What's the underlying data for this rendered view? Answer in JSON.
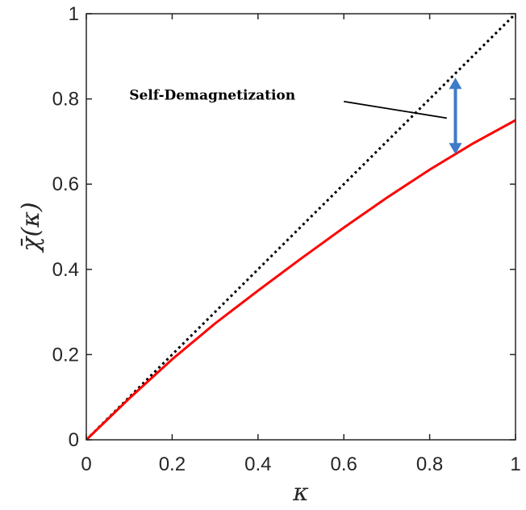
{
  "chart_data": {
    "type": "line",
    "xlabel": "κ",
    "ylabel": "χ̄(κ)",
    "xlim": [
      0,
      1
    ],
    "ylim": [
      0,
      1
    ],
    "xticks": [
      "0",
      "0.2",
      "0.4",
      "0.6",
      "0.8",
      "1"
    ],
    "yticks": [
      "0",
      "0.2",
      "0.4",
      "0.6",
      "0.8",
      "1"
    ],
    "grid": false,
    "series": [
      {
        "style": "dotted",
        "color": "#000000",
        "x": [
          0,
          1
        ],
        "y": [
          0,
          1
        ]
      },
      {
        "style": "solid",
        "color": "#ff0000",
        "x": [
          0,
          0.1,
          0.2,
          0.3,
          0.4,
          0.5,
          0.6,
          0.7,
          0.8,
          0.9,
          1.0
        ],
        "y": [
          0,
          0.097,
          0.189,
          0.273,
          0.35,
          0.425,
          0.498,
          0.568,
          0.634,
          0.695,
          0.75
        ]
      }
    ],
    "annotations": [
      {
        "text": "Self-Demagnetization",
        "label_at": [
          0.1,
          0.81
        ],
        "line_to": [
          0.84,
          0.755
        ]
      }
    ],
    "double_arrow": {
      "color": "#3d7cc9",
      "x": 0.86,
      "y_top": 0.85,
      "y_bottom": 0.67
    }
  }
}
